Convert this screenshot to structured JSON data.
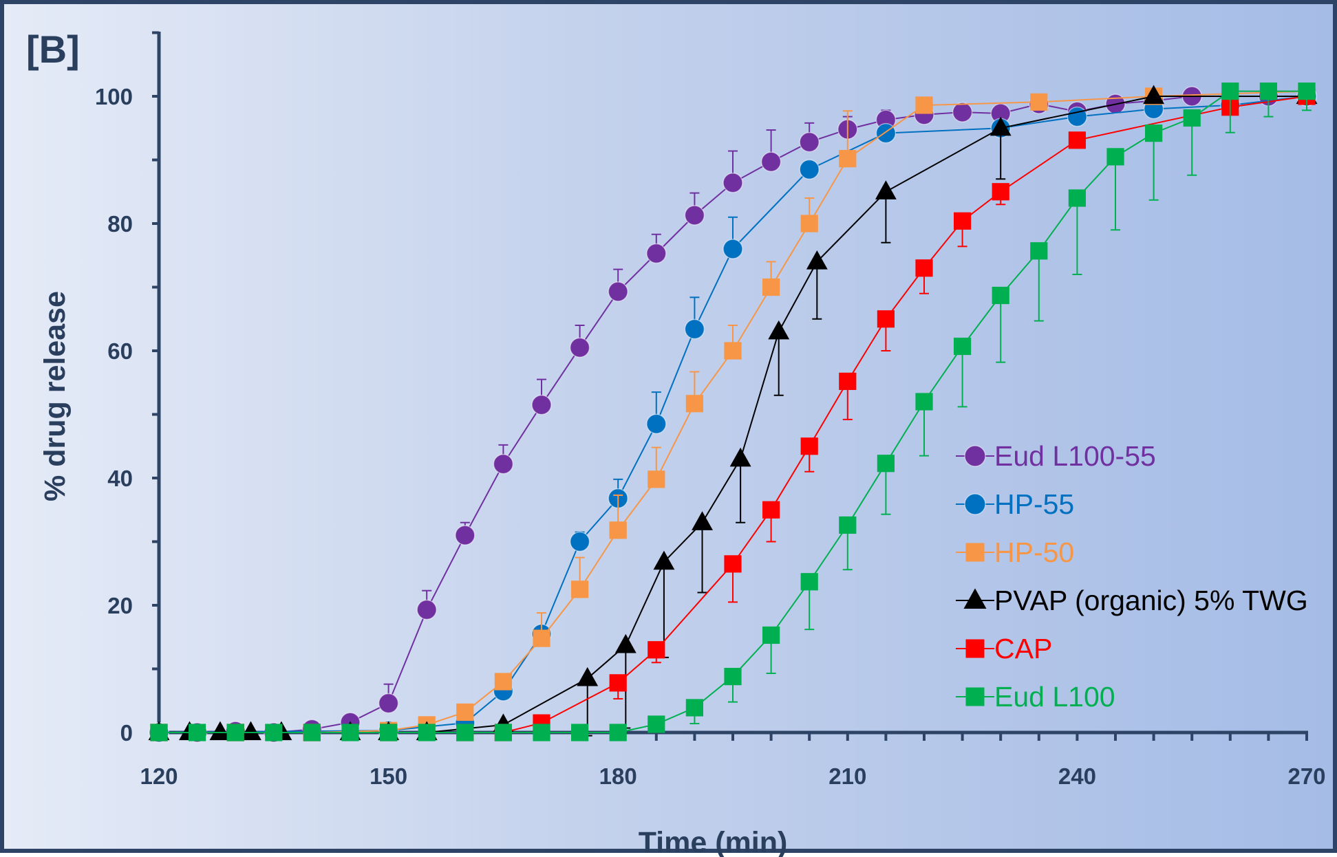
{
  "chart_data": {
    "type": "line",
    "panel_label": "[B]",
    "xlabel": "Time (min)",
    "ylabel": "% drug release",
    "xlim": [
      120,
      270
    ],
    "ylim": [
      0,
      100
    ],
    "x_ticks": [
      120,
      150,
      180,
      210,
      240,
      270
    ],
    "y_ticks": [
      0,
      20,
      40,
      60,
      80,
      100
    ],
    "legend_position": "right-middle",
    "grid": false,
    "series": [
      {
        "name": "Eud L100-55",
        "color": "#7030a0",
        "marker": "circle",
        "points": [
          [
            120,
            0
          ],
          [
            125,
            0
          ],
          [
            130,
            0.2
          ],
          [
            135,
            0
          ],
          [
            140,
            0.5
          ],
          [
            145,
            1.6
          ],
          [
            150,
            4.6
          ],
          [
            155,
            19.3
          ],
          [
            160,
            31
          ],
          [
            165,
            42.2
          ],
          [
            170,
            51.5
          ],
          [
            175,
            60.5
          ],
          [
            180,
            69.3
          ],
          [
            185,
            75.3
          ],
          [
            190,
            81.3
          ],
          [
            195,
            86.4
          ],
          [
            200,
            89.7
          ],
          [
            205,
            92.8
          ],
          [
            210,
            94.8
          ],
          [
            215,
            96.3
          ],
          [
            220,
            97.1
          ],
          [
            225,
            97.5
          ],
          [
            230,
            97.3
          ],
          [
            235,
            98.8
          ],
          [
            240,
            97.6
          ],
          [
            245,
            98.8
          ],
          [
            250,
            99.3
          ],
          [
            255,
            100
          ],
          [
            265,
            100
          ],
          [
            270,
            100
          ]
        ],
        "errors": [
          [
            150,
            3
          ],
          [
            155,
            3
          ],
          [
            160,
            2
          ],
          [
            165,
            3
          ],
          [
            170,
            4
          ],
          [
            175,
            3.5
          ],
          [
            180,
            3.5
          ],
          [
            185,
            3
          ],
          [
            190,
            3.5
          ],
          [
            195,
            5
          ],
          [
            200,
            5
          ],
          [
            205,
            3
          ],
          [
            210,
            2
          ],
          [
            215,
            1.5
          ]
        ]
      },
      {
        "name": "HP-55",
        "color": "#0070c0",
        "marker": "circle",
        "points": [
          [
            120,
            0
          ],
          [
            150,
            0.3
          ],
          [
            160,
            1.5
          ],
          [
            165,
            6.5
          ],
          [
            170,
            15.5
          ],
          [
            175,
            30
          ],
          [
            180,
            36.8
          ],
          [
            185,
            48.5
          ],
          [
            190,
            63.4
          ],
          [
            195,
            76
          ],
          [
            205,
            88.5
          ],
          [
            215,
            94.2
          ],
          [
            230,
            95
          ],
          [
            240,
            96.8
          ],
          [
            250,
            98
          ],
          [
            260,
            98.6
          ],
          [
            270,
            100
          ]
        ],
        "errors": [
          [
            175,
            1.5
          ],
          [
            180,
            3
          ],
          [
            185,
            5
          ],
          [
            190,
            5
          ],
          [
            195,
            5
          ]
        ]
      },
      {
        "name": "HP-50",
        "color": "#f79646",
        "marker": "square",
        "points": [
          [
            120,
            0
          ],
          [
            130,
            0
          ],
          [
            140,
            0
          ],
          [
            150,
            0.3
          ],
          [
            155,
            1.2
          ],
          [
            160,
            3.2
          ],
          [
            165,
            8
          ],
          [
            170,
            14.8
          ],
          [
            175,
            22.5
          ],
          [
            180,
            31.8
          ],
          [
            185,
            39.8
          ],
          [
            190,
            51.7
          ],
          [
            195,
            60
          ],
          [
            200,
            70
          ],
          [
            205,
            80
          ],
          [
            210,
            90.2
          ],
          [
            220,
            98.6
          ],
          [
            235,
            99.1
          ],
          [
            250,
            100
          ],
          [
            270,
            100.8
          ]
        ],
        "errors": [
          [
            170,
            4
          ],
          [
            175,
            5
          ],
          [
            180,
            5.5
          ],
          [
            185,
            5
          ],
          [
            190,
            5
          ],
          [
            195,
            4
          ],
          [
            200,
            4
          ],
          [
            205,
            4
          ],
          [
            210,
            7.5
          ]
        ]
      },
      {
        "name": "PVAP (organic) 5% TWG",
        "color": "#000000",
        "marker": "triangle",
        "points": [
          [
            120,
            0
          ],
          [
            124,
            0
          ],
          [
            128,
            0
          ],
          [
            132,
            0
          ],
          [
            136,
            0
          ],
          [
            145,
            0
          ],
          [
            150,
            0
          ],
          [
            155,
            0
          ],
          [
            165,
            1.2
          ],
          [
            176,
            8.5
          ],
          [
            181,
            13.7
          ],
          [
            186,
            26.8
          ],
          [
            191,
            33
          ],
          [
            196,
            43
          ],
          [
            201,
            63
          ],
          [
            206,
            74
          ],
          [
            215,
            85
          ],
          [
            230,
            95
          ],
          [
            250,
            100
          ],
          [
            270,
            100
          ]
        ],
        "errors": [
          [
            176,
            9
          ],
          [
            181,
            13
          ],
          [
            186,
            15
          ],
          [
            191,
            11
          ],
          [
            196,
            10
          ],
          [
            201,
            10
          ],
          [
            206,
            9
          ],
          [
            215,
            8
          ],
          [
            230,
            8
          ]
        ]
      },
      {
        "name": "CAP",
        "color": "#ff0000",
        "marker": "square",
        "points": [
          [
            120,
            0
          ],
          [
            130,
            0
          ],
          [
            140,
            0
          ],
          [
            150,
            0
          ],
          [
            160,
            0
          ],
          [
            165,
            0
          ],
          [
            170,
            1.5
          ],
          [
            180,
            7.8
          ],
          [
            185,
            13
          ],
          [
            195,
            26.5
          ],
          [
            200,
            35
          ],
          [
            205,
            45
          ],
          [
            210,
            55.2
          ],
          [
            215,
            65
          ],
          [
            220,
            73
          ],
          [
            225,
            80.4
          ],
          [
            230,
            85
          ],
          [
            240,
            93.1
          ],
          [
            260,
            98.3
          ],
          [
            270,
            100
          ]
        ],
        "errors": [
          [
            180,
            2.5
          ],
          [
            185,
            2
          ],
          [
            195,
            6
          ],
          [
            200,
            5
          ],
          [
            205,
            4
          ],
          [
            210,
            6
          ],
          [
            215,
            5
          ],
          [
            220,
            4
          ],
          [
            225,
            4
          ],
          [
            230,
            2
          ]
        ]
      },
      {
        "name": "Eud L100",
        "color": "#00b050",
        "marker": "square",
        "points": [
          [
            120,
            0
          ],
          [
            125,
            0
          ],
          [
            130,
            0
          ],
          [
            135,
            0
          ],
          [
            140,
            0
          ],
          [
            145,
            0
          ],
          [
            150,
            0
          ],
          [
            155,
            0
          ],
          [
            160,
            0
          ],
          [
            165,
            0
          ],
          [
            170,
            0
          ],
          [
            175,
            0
          ],
          [
            180,
            0
          ],
          [
            185,
            1.3
          ],
          [
            190,
            3.9
          ],
          [
            195,
            8.8
          ],
          [
            200,
            15.3
          ],
          [
            205,
            23.7
          ],
          [
            210,
            32.6
          ],
          [
            215,
            42.3
          ],
          [
            220,
            52
          ],
          [
            225,
            60.7
          ],
          [
            230,
            68.7
          ],
          [
            235,
            75.7
          ],
          [
            240,
            84
          ],
          [
            245,
            90.5
          ],
          [
            250,
            94.2
          ],
          [
            255,
            96.6
          ],
          [
            260,
            100.8
          ],
          [
            265,
            100.8
          ],
          [
            270,
            100.8
          ]
        ],
        "errors": [
          [
            190,
            2.5
          ],
          [
            195,
            4
          ],
          [
            200,
            6
          ],
          [
            205,
            7.5
          ],
          [
            210,
            7
          ],
          [
            215,
            8
          ],
          [
            220,
            8.5
          ],
          [
            225,
            9.5
          ],
          [
            230,
            10.5
          ],
          [
            235,
            11
          ],
          [
            240,
            12
          ],
          [
            245,
            11.5
          ],
          [
            250,
            10.5
          ],
          [
            255,
            9
          ],
          [
            260,
            6.5
          ],
          [
            265,
            4
          ],
          [
            270,
            3
          ]
        ]
      }
    ]
  }
}
